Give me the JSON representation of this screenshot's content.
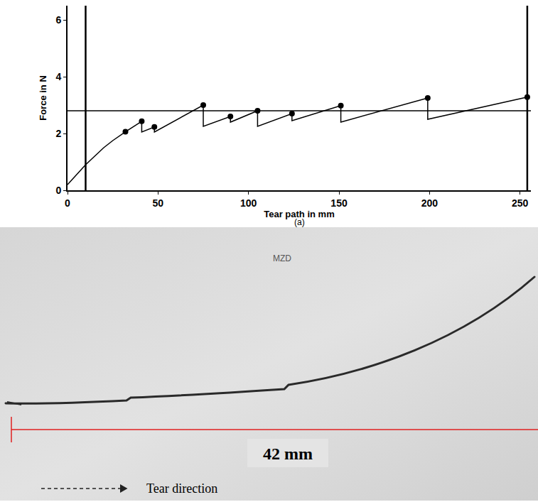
{
  "chart_data": {
    "type": "line",
    "panel_label": "(a)",
    "x_label": "Tear path in mm",
    "y_label": "Force in N",
    "xlim": [
      0,
      256
    ],
    "ylim": [
      0,
      6.5
    ],
    "xticks": [
      0,
      50,
      100,
      150,
      200,
      250
    ],
    "yticks": [
      0,
      2,
      4,
      6
    ],
    "grid": false,
    "hlines": [
      2.8
    ],
    "vlines": [
      10,
      254
    ],
    "series": [
      {
        "type": "line",
        "color": "#000000",
        "line_style": "solid",
        "x": [
          0,
          5,
          10,
          15,
          20,
          25,
          32,
          41,
          41,
          48,
          48,
          75,
          75,
          90,
          90,
          105,
          105,
          124,
          124,
          151,
          151,
          199,
          199,
          254
        ],
        "values": [
          0.2,
          0.55,
          0.9,
          1.2,
          1.5,
          1.75,
          2.06,
          2.43,
          2.05,
          2.23,
          2.05,
          3.0,
          2.25,
          2.6,
          2.4,
          2.8,
          2.25,
          2.7,
          2.45,
          2.98,
          2.4,
          3.25,
          2.5,
          3.28
        ]
      },
      {
        "type": "scatter",
        "color": "#000000",
        "marker": "circle",
        "x": [
          32,
          41,
          48,
          75,
          90,
          105,
          124,
          151,
          199,
          254
        ],
        "values": [
          2.06,
          2.43,
          2.23,
          3.0,
          2.6,
          2.8,
          2.7,
          2.98,
          3.25,
          3.28
        ]
      }
    ]
  },
  "photo": {
    "label": "MZD",
    "scale_text": "42 mm",
    "direction_text": "Tear direction"
  }
}
